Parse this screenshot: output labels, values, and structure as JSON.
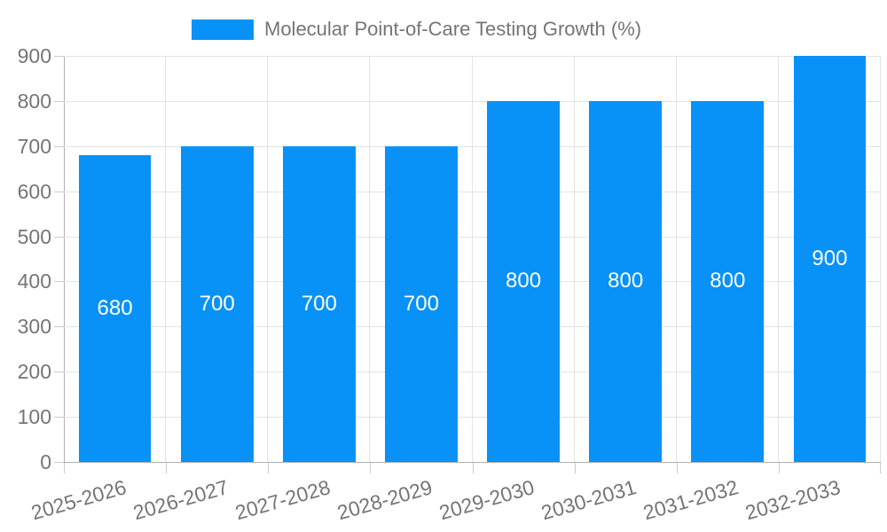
{
  "legend": {
    "title": "Molecular Point-of-Care Testing Growth (%)"
  },
  "chart_data": {
    "type": "bar",
    "title": "Molecular Point-of-Care Testing Growth (%)",
    "categories": [
      "2025-2026",
      "2026-2027",
      "2027-2028",
      "2028-2029",
      "2029-2030",
      "2030-2031",
      "2031-2032",
      "2032-2033"
    ],
    "values": [
      680,
      700,
      700,
      700,
      800,
      800,
      800,
      900
    ],
    "bar_value_labels": [
      "680",
      "700",
      "700",
      "700",
      "800",
      "800",
      "800",
      "900"
    ],
    "xlabel": "",
    "ylabel": "",
    "ylim": [
      0,
      900
    ],
    "ytick_interval": 100,
    "ytick_labels": [
      "0",
      "100",
      "200",
      "300",
      "400",
      "500",
      "600",
      "700",
      "800",
      "900"
    ],
    "legend_position": "top-center",
    "grid": true,
    "colors": {
      "bar": "#0892f8",
      "bar_label": "#ffffff",
      "axis_text": "#757575",
      "gridline": "#e3e3e3",
      "axis_line": "#b0b0b0",
      "background": "#ffffff"
    }
  }
}
